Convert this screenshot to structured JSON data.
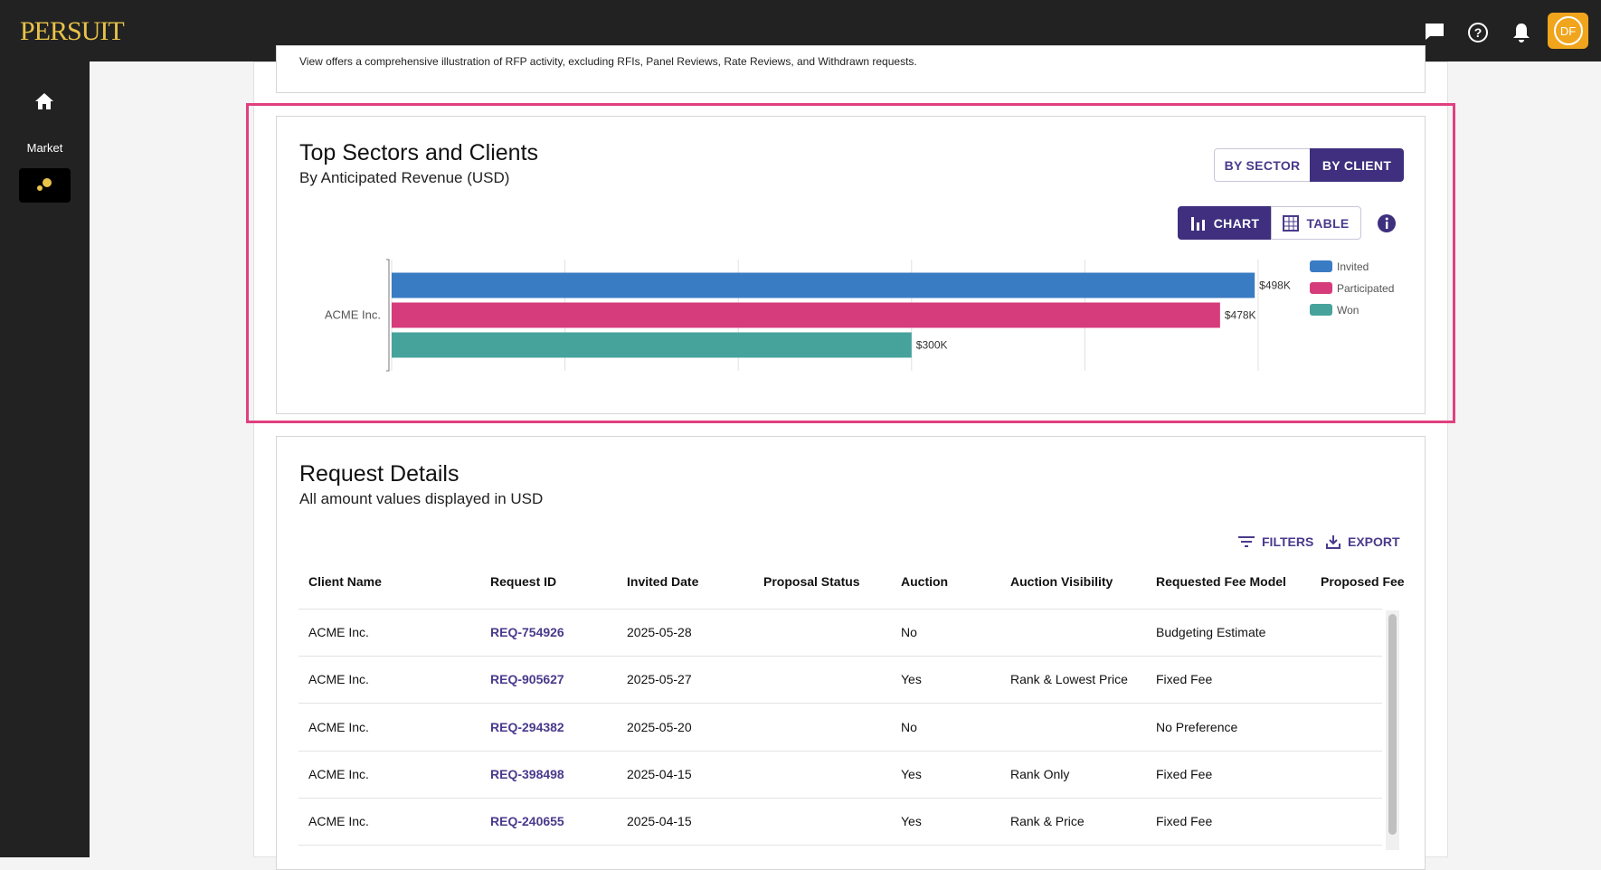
{
  "header": {
    "logo": "PERSUIT",
    "avatar": "DF"
  },
  "sidebar": {
    "market": "Market"
  },
  "top_card": {
    "text": "View offers a comprehensive illustration of RFP activity, excluding RFIs, Panel Reviews, Rate Reviews, and Withdrawn requests."
  },
  "chart_card": {
    "toggles": [
      "BY SECTOR",
      "BY CLIENT"
    ],
    "views": [
      "CHART",
      "TABLE"
    ]
  },
  "chart_data": {
    "type": "hbar",
    "title": "Top Sectors and Clients",
    "subtitle": "By Anticipated Revenue (USD)",
    "categories": [
      "ACME Inc."
    ],
    "series": [
      {
        "name": "Invited",
        "color": "#3a7cc3",
        "values": [
          498000
        ],
        "value_labels": [
          "$498K"
        ]
      },
      {
        "name": "Participated",
        "color": "#d63c7c",
        "values": [
          478000
        ],
        "value_labels": [
          "$478K"
        ]
      },
      {
        "name": "Won",
        "color": "#46a39c",
        "values": [
          300000
        ],
        "value_labels": [
          "$300K"
        ]
      }
    ],
    "xlim": [
      0,
      500000
    ],
    "xticks": [
      0,
      100000,
      200000,
      300000,
      400000,
      500000
    ],
    "grid": true,
    "legend": "right"
  },
  "request_details": {
    "title": "Request Details",
    "subtitle": "All amount values displayed in USD",
    "actions": [
      "FILTERS",
      "EXPORT"
    ],
    "table": {
      "columns": [
        "Client Name",
        "Request ID",
        "Invited Date",
        "Proposal Status",
        "Auction",
        "Auction Visibility",
        "Requested Fee Model",
        "Proposed Fee"
      ],
      "rows": [
        [
          "ACME Inc.",
          "REQ-754926",
          "2025-05-28",
          null,
          "No",
          null,
          "Budgeting Estimate",
          null
        ],
        [
          "ACME Inc.",
          "REQ-905627",
          "2025-05-27",
          null,
          "Yes",
          "Rank & Lowest Price",
          "Fixed Fee",
          null
        ],
        [
          "ACME Inc.",
          "REQ-294382",
          "2025-05-20",
          null,
          "No",
          null,
          "No Preference",
          null
        ],
        [
          "ACME Inc.",
          "REQ-398498",
          "2025-04-15",
          null,
          "Yes",
          "Rank Only",
          "Fixed Fee",
          null
        ],
        [
          "ACME Inc.",
          "REQ-240655",
          "2025-04-15",
          null,
          "Yes",
          "Rank & Price",
          "Fixed Fee",
          null
        ]
      ]
    }
  }
}
